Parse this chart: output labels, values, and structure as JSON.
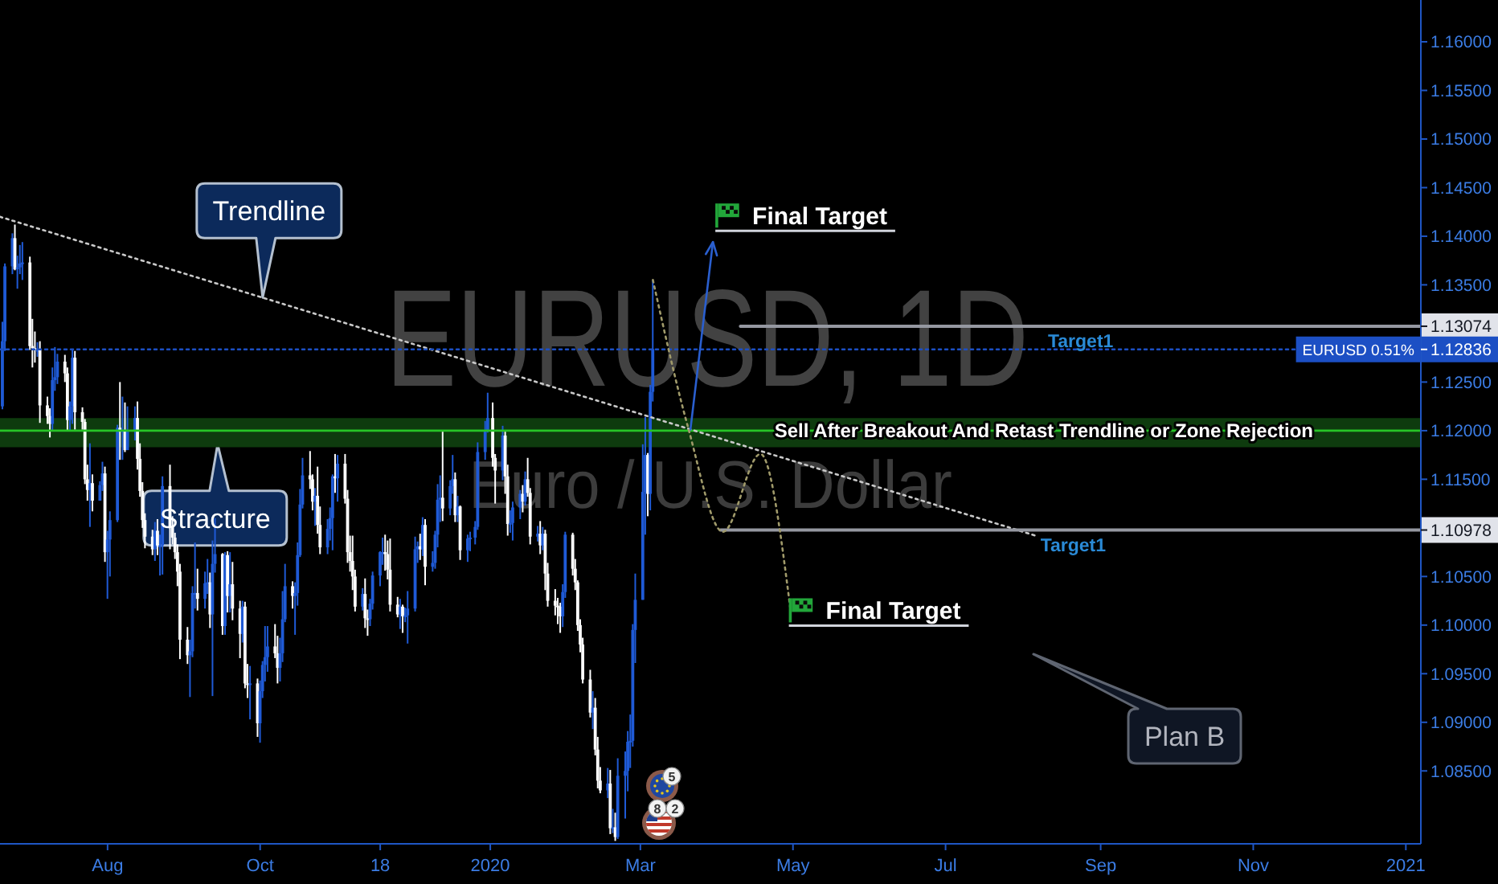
{
  "chart_data": {
    "type": "candlestick",
    "title": "EURUSD, 1D",
    "subtitle": "Euro / U.S. Dollar",
    "x": [
      "2019-06-20",
      "2019-06-21",
      "2019-06-24",
      "2019-06-25",
      "2019-06-26",
      "2019-06-27",
      "2019-06-28",
      "2019-07-01",
      "2019-07-02",
      "2019-07-03",
      "2019-07-04",
      "2019-07-05",
      "2019-07-08",
      "2019-07-09",
      "2019-07-10",
      "2019-07-11",
      "2019-07-12",
      "2019-07-15",
      "2019-07-16",
      "2019-07-17",
      "2019-07-18",
      "2019-07-19",
      "2019-07-22",
      "2019-07-23",
      "2019-07-24",
      "2019-07-25",
      "2019-07-26",
      "2019-07-29",
      "2019-07-30",
      "2019-07-31",
      "2019-08-01",
      "2019-08-02",
      "2019-08-05",
      "2019-08-06",
      "2019-08-07",
      "2019-08-08",
      "2019-08-09",
      "2019-08-12",
      "2019-08-13",
      "2019-08-14",
      "2019-08-15",
      "2019-08-16",
      "2019-08-19",
      "2019-08-20",
      "2019-08-21",
      "2019-08-22",
      "2019-08-23",
      "2019-08-26",
      "2019-08-27",
      "2019-08-28",
      "2019-08-29",
      "2019-08-30",
      "2019-09-02",
      "2019-09-03",
      "2019-09-04",
      "2019-09-05",
      "2019-09-06",
      "2019-09-09",
      "2019-09-10",
      "2019-09-11",
      "2019-09-12",
      "2019-09-13",
      "2019-09-16",
      "2019-09-17",
      "2019-09-18",
      "2019-09-19",
      "2019-09-20",
      "2019-09-23",
      "2019-09-24",
      "2019-09-25",
      "2019-09-26",
      "2019-09-27",
      "2019-09-30",
      "2019-10-01",
      "2019-10-02",
      "2019-10-03",
      "2019-10-04",
      "2019-10-07",
      "2019-10-08",
      "2019-10-09",
      "2019-10-10",
      "2019-10-11",
      "2019-10-14",
      "2019-10-15",
      "2019-10-16",
      "2019-10-17",
      "2019-10-18",
      "2019-10-21",
      "2019-10-22",
      "2019-10-23",
      "2019-10-24",
      "2019-10-25",
      "2019-10-28",
      "2019-10-29",
      "2019-10-30",
      "2019-10-31",
      "2019-11-01",
      "2019-11-04",
      "2019-11-05",
      "2019-11-06",
      "2019-11-07",
      "2019-11-08",
      "2019-11-11",
      "2019-11-12",
      "2019-11-13",
      "2019-11-14",
      "2019-11-15",
      "2019-11-18",
      "2019-11-19",
      "2019-11-20",
      "2019-11-21",
      "2019-11-22",
      "2019-11-25",
      "2019-11-26",
      "2019-11-27",
      "2019-11-28",
      "2019-11-29",
      "2019-12-02",
      "2019-12-03",
      "2019-12-04",
      "2019-12-05",
      "2019-12-06",
      "2019-12-09",
      "2019-12-10",
      "2019-12-11",
      "2019-12-12",
      "2019-12-13",
      "2019-12-16",
      "2019-12-17",
      "2019-12-18",
      "2019-12-19",
      "2019-12-20",
      "2019-12-23",
      "2019-12-24",
      "2019-12-26",
      "2019-12-27",
      "2019-12-30",
      "2019-12-31",
      "2020-01-02",
      "2020-01-03",
      "2020-01-06",
      "2020-01-07",
      "2020-01-08",
      "2020-01-09",
      "2020-01-10",
      "2020-01-13",
      "2020-01-14",
      "2020-01-15",
      "2020-01-16",
      "2020-01-17",
      "2020-01-20",
      "2020-01-21",
      "2020-01-22",
      "2020-01-23",
      "2020-01-24",
      "2020-01-27",
      "2020-01-28",
      "2020-01-29",
      "2020-01-30",
      "2020-01-31",
      "2020-02-03",
      "2020-02-04",
      "2020-02-05",
      "2020-02-06",
      "2020-02-07",
      "2020-02-10",
      "2020-02-11",
      "2020-02-12",
      "2020-02-13",
      "2020-02-14",
      "2020-02-17",
      "2020-02-18",
      "2020-02-19",
      "2020-02-20",
      "2020-02-21",
      "2020-02-24",
      "2020-02-25",
      "2020-02-26",
      "2020-02-27",
      "2020-02-28",
      "2020-03-02",
      "2020-03-03",
      "2020-03-04",
      "2020-03-05",
      "2020-03-06"
    ],
    "ohlc": [
      [
        1.1225,
        1.1312,
        1.1222,
        1.1292
      ],
      [
        1.1292,
        1.1372,
        1.1282,
        1.1369
      ],
      [
        1.1369,
        1.1403,
        1.1361,
        1.1398
      ],
      [
        1.1398,
        1.1412,
        1.1365,
        1.1366
      ],
      [
        1.1366,
        1.138,
        1.1346,
        1.1368
      ],
      [
        1.1368,
        1.1391,
        1.1361,
        1.1372
      ],
      [
        1.1372,
        1.1394,
        1.1355,
        1.1373
      ],
      [
        1.1373,
        1.1379,
        1.1283,
        1.1287
      ],
      [
        1.1287,
        1.1315,
        1.1265,
        1.1285
      ],
      [
        1.1285,
        1.1302,
        1.127,
        1.1283
      ],
      [
        1.1283,
        1.1291,
        1.1276,
        1.1283
      ],
      [
        1.1283,
        1.1292,
        1.1208,
        1.1226
      ],
      [
        1.1226,
        1.1235,
        1.1207,
        1.1215
      ],
      [
        1.1215,
        1.1223,
        1.1193,
        1.1207
      ],
      [
        1.1207,
        1.1265,
        1.12,
        1.1252
      ],
      [
        1.1252,
        1.1286,
        1.1241,
        1.1255
      ],
      [
        1.1255,
        1.1279,
        1.1248,
        1.1271
      ],
      [
        1.1271,
        1.1278,
        1.125,
        1.1259
      ],
      [
        1.1259,
        1.1265,
        1.12,
        1.1211
      ],
      [
        1.1211,
        1.123,
        1.12,
        1.1225
      ],
      [
        1.1225,
        1.1283,
        1.1207,
        1.1275
      ],
      [
        1.1275,
        1.1282,
        1.1201,
        1.1219
      ],
      [
        1.1219,
        1.1224,
        1.1201,
        1.1209
      ],
      [
        1.1209,
        1.1212,
        1.1145,
        1.115
      ],
      [
        1.115,
        1.1165,
        1.1128,
        1.1139
      ],
      [
        1.1139,
        1.1187,
        1.1101,
        1.1146
      ],
      [
        1.1146,
        1.1155,
        1.1117,
        1.1128
      ],
      [
        1.1128,
        1.1148,
        1.1128,
        1.1144
      ],
      [
        1.1144,
        1.1168,
        1.1138,
        1.1156
      ],
      [
        1.1156,
        1.1163,
        1.1065,
        1.1075
      ],
      [
        1.1075,
        1.1097,
        1.1027,
        1.1088
      ],
      [
        1.1088,
        1.1117,
        1.105,
        1.1108
      ],
      [
        1.1108,
        1.1206,
        1.1106,
        1.1203
      ],
      [
        1.1203,
        1.125,
        1.117,
        1.1199
      ],
      [
        1.1199,
        1.1235,
        1.117,
        1.12
      ],
      [
        1.12,
        1.1229,
        1.1178,
        1.118
      ],
      [
        1.118,
        1.1225,
        1.118,
        1.12
      ],
      [
        1.12,
        1.1225,
        1.119,
        1.1213
      ],
      [
        1.1213,
        1.123,
        1.116,
        1.1171
      ],
      [
        1.1171,
        1.1187,
        1.1132,
        1.1138
      ],
      [
        1.1138,
        1.1147,
        1.11,
        1.1108
      ],
      [
        1.1108,
        1.1115,
        1.1079,
        1.1091
      ],
      [
        1.1091,
        1.1098,
        1.1072,
        1.1078
      ],
      [
        1.1078,
        1.1106,
        1.1066,
        1.1097
      ],
      [
        1.1097,
        1.1109,
        1.1072,
        1.1082
      ],
      [
        1.1082,
        1.1093,
        1.1051,
        1.1082
      ],
      [
        1.1082,
        1.1153,
        1.1052,
        1.1143
      ],
      [
        1.1143,
        1.1165,
        1.1078,
        1.1101
      ],
      [
        1.1101,
        1.1112,
        1.1083,
        1.109
      ],
      [
        1.109,
        1.1095,
        1.1068,
        1.1075
      ],
      [
        1.1075,
        1.1083,
        1.104,
        1.1055
      ],
      [
        1.1055,
        1.1063,
        1.0965,
        1.0985
      ],
      [
        1.0985,
        1.0998,
        1.096,
        1.0969
      ],
      [
        1.0969,
        1.0985,
        1.0926,
        1.0973
      ],
      [
        1.0973,
        1.104,
        1.0967,
        1.1033
      ],
      [
        1.1033,
        1.1085,
        1.1017,
        1.1033
      ],
      [
        1.1033,
        1.1058,
        1.1015,
        1.1027
      ],
      [
        1.1027,
        1.1055,
        1.1017,
        1.1043
      ],
      [
        1.1043,
        1.1068,
        1.1032,
        1.1044
      ],
      [
        1.1044,
        1.1054,
        1.0997,
        1.1011
      ],
      [
        1.1011,
        1.1087,
        1.0927,
        1.1063
      ],
      [
        1.1063,
        1.111,
        1.1054,
        1.1073
      ],
      [
        1.1073,
        1.1074,
        1.099,
        1.0999
      ],
      [
        1.0999,
        1.1075,
        1.099,
        1.1072
      ],
      [
        1.1072,
        1.1076,
        1.1013,
        1.103
      ],
      [
        1.103,
        1.1075,
        1.1013,
        1.1042
      ],
      [
        1.1042,
        1.1065,
        1.1005,
        1.1017
      ],
      [
        1.1017,
        1.1025,
        1.0966,
        1.0991
      ],
      [
        1.0991,
        1.1025,
        1.0982,
        1.1019
      ],
      [
        1.1019,
        1.1024,
        1.0935,
        1.094
      ],
      [
        1.094,
        1.096,
        1.0925,
        1.0939
      ],
      [
        1.0939,
        1.0958,
        1.0903,
        1.094
      ],
      [
        1.094,
        1.0945,
        1.0885,
        1.0899
      ],
      [
        1.0899,
        1.0943,
        1.0879,
        1.0932
      ],
      [
        1.0932,
        1.0963,
        1.0925,
        1.0959
      ],
      [
        1.0959,
        1.0999,
        1.0942,
        1.0967
      ],
      [
        1.0967,
        1.0999,
        1.0952,
        1.0978
      ],
      [
        1.0978,
        1.1001,
        1.0966,
        1.0971
      ],
      [
        1.0971,
        1.0989,
        1.094,
        1.0956
      ],
      [
        1.0956,
        1.0987,
        1.0942,
        1.0971
      ],
      [
        1.0971,
        1.1035,
        1.0962,
        1.1006
      ],
      [
        1.1006,
        1.1063,
        1.1003,
        1.104
      ],
      [
        1.104,
        1.1045,
        1.1017,
        1.103
      ],
      [
        1.103,
        1.1044,
        1.099,
        1.1033
      ],
      [
        1.1033,
        1.1085,
        1.102,
        1.1072
      ],
      [
        1.1072,
        1.114,
        1.107,
        1.1124
      ],
      [
        1.1124,
        1.1172,
        1.112,
        1.1154
      ],
      [
        1.1154,
        1.1179,
        1.114,
        1.115
      ],
      [
        1.115,
        1.1155,
        1.1118,
        1.1127
      ],
      [
        1.1127,
        1.1141,
        1.1102,
        1.1133
      ],
      [
        1.1133,
        1.1163,
        1.1094,
        1.1103
      ],
      [
        1.1103,
        1.1122,
        1.1073,
        1.108
      ],
      [
        1.108,
        1.1109,
        1.1073,
        1.1099
      ],
      [
        1.1099,
        1.1121,
        1.1087,
        1.111
      ],
      [
        1.111,
        1.1155,
        1.1077,
        1.1153
      ],
      [
        1.1153,
        1.1176,
        1.1136,
        1.1151
      ],
      [
        1.1151,
        1.1175,
        1.1127,
        1.1166
      ],
      [
        1.1166,
        1.1176,
        1.1125,
        1.113
      ],
      [
        1.113,
        1.1139,
        1.1064,
        1.1075
      ],
      [
        1.1075,
        1.1092,
        1.1055,
        1.1066
      ],
      [
        1.1066,
        1.1092,
        1.1036,
        1.105
      ],
      [
        1.105,
        1.1057,
        1.1014,
        1.1019
      ],
      [
        1.1019,
        1.1038,
        1.1015,
        1.1032
      ],
      [
        1.1032,
        1.1048,
        1.0997,
        1.1007
      ],
      [
        1.1007,
        1.1016,
        1.0989,
        1.1006
      ],
      [
        1.1006,
        1.1027,
        1.0999,
        1.1022
      ],
      [
        1.1022,
        1.1055,
        1.1016,
        1.1051
      ],
      [
        1.1051,
        1.1076,
        1.104,
        1.1075
      ],
      [
        1.1075,
        1.109,
        1.1062,
        1.1075
      ],
      [
        1.1075,
        1.1093,
        1.1056,
        1.1073
      ],
      [
        1.1073,
        1.1087,
        1.1047,
        1.1057
      ],
      [
        1.1057,
        1.1089,
        1.1014,
        1.1021
      ],
      [
        1.1021,
        1.1029,
        1.1008,
        1.1011
      ],
      [
        1.1011,
        1.1027,
        1.0996,
        1.1019
      ],
      [
        1.1019,
        1.1021,
        1.0992,
        1.1009
      ],
      [
        1.1009,
        1.1018,
        1.1003,
        1.101
      ],
      [
        1.101,
        1.1035,
        1.0981,
        1.1017
      ],
      [
        1.1017,
        1.1091,
        1.1014,
        1.1078
      ],
      [
        1.1078,
        1.1086,
        1.1064,
        1.1081
      ],
      [
        1.1081,
        1.1094,
        1.1067,
        1.1078
      ],
      [
        1.1078,
        1.1111,
        1.1071,
        1.1103
      ],
      [
        1.1103,
        1.1109,
        1.1041,
        1.106
      ],
      [
        1.106,
        1.1076,
        1.1055,
        1.1064
      ],
      [
        1.1064,
        1.1097,
        1.1058,
        1.1093
      ],
      [
        1.1093,
        1.1145,
        1.108,
        1.1129
      ],
      [
        1.1129,
        1.1154,
        1.1106,
        1.1131
      ],
      [
        1.1131,
        1.1199,
        1.1107,
        1.112
      ],
      [
        1.112,
        1.1149,
        1.1113,
        1.1143
      ],
      [
        1.1143,
        1.1175,
        1.1135,
        1.115
      ],
      [
        1.115,
        1.1157,
        1.1106,
        1.1113
      ],
      [
        1.1113,
        1.1133,
        1.1106,
        1.1122
      ],
      [
        1.1122,
        1.1123,
        1.1067,
        1.1077
      ],
      [
        1.1077,
        1.1093,
        1.1065,
        1.1089
      ],
      [
        1.1089,
        1.1096,
        1.1076,
        1.109
      ],
      [
        1.109,
        1.1107,
        1.1083,
        1.1101
      ],
      [
        1.1101,
        1.1188,
        1.1098,
        1.1178
      ],
      [
        1.1178,
        1.121,
        1.117,
        1.12
      ],
      [
        1.12,
        1.1239,
        1.1198,
        1.1213
      ],
      [
        1.1213,
        1.1229,
        1.1163,
        1.1172
      ],
      [
        1.1172,
        1.1176,
        1.1125,
        1.1159
      ],
      [
        1.1159,
        1.1205,
        1.1149,
        1.1195
      ],
      [
        1.1195,
        1.1199,
        1.1135,
        1.1153
      ],
      [
        1.1153,
        1.1165,
        1.1092,
        1.1104
      ],
      [
        1.1104,
        1.1118,
        1.1095,
        1.1105
      ],
      [
        1.1105,
        1.1127,
        1.1087,
        1.1121
      ],
      [
        1.1121,
        1.1139,
        1.1109,
        1.1135
      ],
      [
        1.1135,
        1.1144,
        1.1116,
        1.1127
      ],
      [
        1.1127,
        1.1158,
        1.1123,
        1.115
      ],
      [
        1.115,
        1.1172,
        1.1132,
        1.1136
      ],
      [
        1.1136,
        1.1141,
        1.1083,
        1.1091
      ],
      [
        1.1091,
        1.1102,
        1.1086,
        1.1094
      ],
      [
        1.1094,
        1.1107,
        1.1073,
        1.1082
      ],
      [
        1.1082,
        1.1101,
        1.1077,
        1.1094
      ],
      [
        1.1094,
        1.1098,
        1.1036,
        1.1053
      ],
      [
        1.1053,
        1.1064,
        1.1019,
        1.1025
      ],
      [
        1.1025,
        1.1037,
        1.101,
        1.102
      ],
      [
        1.102,
        1.1028,
        1.1001,
        1.1019
      ],
      [
        1.1019,
        1.1023,
        1.0992,
        1.1009
      ],
      [
        1.1009,
        1.1042,
        1.0998,
        1.1034
      ],
      [
        1.1034,
        1.1096,
        1.1028,
        1.1093
      ],
      [
        1.1093,
        1.1095,
        1.1051,
        1.1058
      ],
      [
        1.1058,
        1.1068,
        1.1036,
        1.1044
      ],
      [
        1.1044,
        1.1046,
        1.0994,
        1.1
      ],
      [
        1.1,
        1.1006,
        1.0972,
        1.098
      ],
      [
        1.098,
        1.0987,
        1.094,
        1.0944
      ],
      [
        1.0944,
        1.0954,
        1.0905,
        1.091
      ],
      [
        1.091,
        1.0932,
        1.0893,
        1.0915
      ],
      [
        1.0915,
        1.0925,
        1.0866,
        1.0872
      ],
      [
        1.0872,
        1.0885,
        1.0832,
        1.084
      ],
      [
        1.084,
        1.0854,
        1.0827,
        1.083
      ],
      [
        1.083,
        1.0853,
        1.0822,
        1.0837
      ],
      [
        1.0837,
        1.0851,
        1.0785,
        1.0791
      ],
      [
        1.0791,
        1.0811,
        1.0786,
        1.0792
      ],
      [
        1.0792,
        1.0807,
        1.0778,
        1.0782
      ],
      [
        1.0782,
        1.0863,
        1.078,
        1.0845
      ],
      [
        1.0845,
        1.087,
        1.0801,
        1.085
      ],
      [
        1.085,
        1.0891,
        1.0829,
        1.088
      ],
      [
        1.088,
        1.0908,
        1.0853,
        1.0881
      ],
      [
        1.0881,
        1.1001,
        1.0875,
        1.0995
      ],
      [
        1.0995,
        1.1053,
        1.0961,
        1.1026
      ],
      [
        1.1026,
        1.1186,
        1.1026,
        1.1137
      ],
      [
        1.1137,
        1.1214,
        1.1093,
        1.1175
      ],
      [
        1.1175,
        1.1177,
        1.1112,
        1.1135
      ],
      [
        1.1135,
        1.1247,
        1.1118,
        1.124
      ],
      [
        1.124,
        1.1355,
        1.123,
        1.1284
      ]
    ],
    "colors": [
      "#1f5ad6",
      "#1f5ad6",
      "#1f5ad6",
      "#ffffff",
      "#1f5ad6",
      "#1f5ad6",
      "#1f5ad6",
      "#ffffff",
      "#ffffff",
      "#ffffff",
      "#1f5ad6",
      "#ffffff",
      "#ffffff",
      "#ffffff",
      "#1f5ad6",
      "#1f5ad6",
      "#1f5ad6",
      "#ffffff",
      "#ffffff",
      "#1f5ad6",
      "#1f5ad6",
      "#ffffff",
      "#ffffff",
      "#ffffff",
      "#ffffff",
      "#1f5ad6",
      "#ffffff",
      "#1f5ad6",
      "#1f5ad6",
      "#ffffff",
      "#1f5ad6",
      "#1f5ad6",
      "#1f5ad6",
      "#ffffff",
      "#1f5ad6",
      "#ffffff",
      "#1f5ad6",
      "#1f5ad6",
      "#ffffff",
      "#ffffff",
      "#ffffff",
      "#ffffff",
      "#ffffff",
      "#1f5ad6",
      "#ffffff",
      "#1f5ad6",
      "#1f5ad6",
      "#ffffff",
      "#ffffff",
      "#ffffff",
      "#ffffff",
      "#ffffff",
      "#ffffff",
      "#1f5ad6",
      "#1f5ad6",
      "#1f5ad6",
      "#ffffff",
      "#1f5ad6",
      "#1f5ad6",
      "#ffffff",
      "#1f5ad6",
      "#1f5ad6",
      "#ffffff",
      "#1f5ad6",
      "#ffffff",
      "#1f5ad6",
      "#ffffff",
      "#ffffff",
      "#1f5ad6",
      "#ffffff",
      "#ffffff",
      "#1f5ad6",
      "#ffffff",
      "#1f5ad6",
      "#1f5ad6",
      "#1f5ad6",
      "#1f5ad6",
      "#ffffff",
      "#ffffff",
      "#1f5ad6",
      "#1f5ad6",
      "#1f5ad6",
      "#ffffff",
      "#1f5ad6",
      "#1f5ad6",
      "#1f5ad6",
      "#1f5ad6",
      "#ffffff",
      "#ffffff",
      "#1f5ad6",
      "#ffffff",
      "#ffffff",
      "#1f5ad6",
      "#1f5ad6",
      "#1f5ad6",
      "#ffffff",
      "#1f5ad6",
      "#ffffff",
      "#ffffff",
      "#ffffff",
      "#ffffff",
      "#ffffff",
      "#1f5ad6",
      "#ffffff",
      "#ffffff",
      "#1f5ad6",
      "#1f5ad6",
      "#1f5ad6",
      "#1f5ad6",
      "#ffffff",
      "#ffffff",
      "#ffffff",
      "#ffffff",
      "#1f5ad6",
      "#ffffff",
      "#1f5ad6",
      "#1f5ad6",
      "#1f5ad6",
      "#1f5ad6",
      "#ffffff",
      "#1f5ad6",
      "#ffffff",
      "#1f5ad6",
      "#1f5ad6",
      "#1f5ad6",
      "#1f5ad6",
      "#ffffff",
      "#1f5ad6",
      "#1f5ad6",
      "#ffffff",
      "#1f5ad6",
      "#ffffff",
      "#1f5ad6",
      "#1f5ad6",
      "#1f5ad6",
      "#1f5ad6",
      "#1f5ad6",
      "#1f5ad6",
      "#ffffff",
      "#ffffff",
      "#1f5ad6",
      "#ffffff",
      "#ffffff",
      "#1f5ad6",
      "#1f5ad6",
      "#1f5ad6",
      "#ffffff",
      "#1f5ad6",
      "#ffffff",
      "#ffffff",
      "#1f5ad6",
      "#ffffff",
      "#1f5ad6",
      "#ffffff",
      "#ffffff",
      "#ffffff",
      "#ffffff",
      "#ffffff",
      "#1f5ad6",
      "#1f5ad6",
      "#ffffff",
      "#ffffff",
      "#ffffff",
      "#ffffff",
      "#ffffff",
      "#ffffff",
      "#1f5ad6",
      "#ffffff",
      "#ffffff",
      "#ffffff",
      "#1f5ad6",
      "#ffffff",
      "#1f5ad6",
      "#ffffff",
      "#1f5ad6",
      "#1f5ad6",
      "#1f5ad6",
      "#1f5ad6",
      "#1f5ad6",
      "#1f5ad6",
      "#1f5ad6",
      "#1f5ad6",
      "#ffffff",
      "#1f5ad6",
      "#1f5ad6"
    ],
    "xlim": [
      "2019-06-19",
      "2021-01-07"
    ],
    "xticks": [
      {
        "value": "2019-08-01",
        "label": "Aug"
      },
      {
        "value": "2019-10-01",
        "label": "Oct"
      },
      {
        "value": "2019-11-18",
        "label": "18"
      },
      {
        "value": "2020-01-01",
        "label": "2020"
      },
      {
        "value": "2020-03-01",
        "label": "Mar"
      },
      {
        "value": "2020-05-01",
        "label": "May"
      },
      {
        "value": "2020-07-01",
        "label": "Jul"
      },
      {
        "value": "2020-09-01",
        "label": "Sep"
      },
      {
        "value": "2020-11-01",
        "label": "Nov"
      },
      {
        "value": "2021-01-01",
        "label": "2021"
      }
    ],
    "ylim": [
      1.0775,
      1.1643
    ],
    "yticks": [
      {
        "value": 1.085,
        "label": "1.08500"
      },
      {
        "value": 1.09,
        "label": "1.09000"
      },
      {
        "value": 1.095,
        "label": "1.09500"
      },
      {
        "value": 1.1,
        "label": "1.10000"
      },
      {
        "value": 1.105,
        "label": "1.10500"
      },
      {
        "value": 1.115,
        "label": "1.11500"
      },
      {
        "value": 1.12,
        "label": "1.12000"
      },
      {
        "value": 1.125,
        "label": "1.12500"
      },
      {
        "value": 1.135,
        "label": "1.13500"
      },
      {
        "value": 1.14,
        "label": "1.14000"
      },
      {
        "value": 1.145,
        "label": "1.14500"
      },
      {
        "value": 1.15,
        "label": "1.15000"
      },
      {
        "value": 1.155,
        "label": "1.15500"
      },
      {
        "value": 1.16,
        "label": "1.16000"
      }
    ],
    "series": [
      {
        "type": "line",
        "x": [
          "2019-06-19",
          "2020-08-06"
        ],
        "values": [
          1.142,
          1.1092
        ],
        "color": "#c9c9c9",
        "line_style": "dotted"
      },
      {
        "type": "line",
        "x": [
          "2020-04-10",
          "2021-01-07"
        ],
        "values": [
          1.13074,
          1.13074
        ],
        "color": "#9598a1",
        "value_labels": [
          null,
          "1.13074"
        ]
      },
      {
        "type": "line",
        "x": [
          "2020-04-02",
          "2021-01-07"
        ],
        "values": [
          1.10978,
          1.10978
        ],
        "color": "#9598a1",
        "value_labels": [
          null,
          "1.10978"
        ]
      },
      {
        "type": "line",
        "name": "EURUSD 0.51%",
        "x": [
          "2019-06-19",
          "2021-01-07"
        ],
        "values": [
          1.12836,
          1.12836
        ],
        "color": "#1c4fc4",
        "line_style": "dotted",
        "value_labels": [
          null,
          "1.12836"
        ]
      },
      {
        "type": "line",
        "x": [
          "2020-03-21",
          "2020-03-30"
        ],
        "values": [
          1.1201,
          1.1394
        ],
        "color": "#2a5fcf"
      },
      {
        "type": "line",
        "x": [
          "2020-03-06",
          "2020-03-20",
          "2020-04-03",
          "2020-04-18",
          "2020-04-30"
        ],
        "values": [
          1.1355,
          1.1204,
          1.1096,
          1.1176,
          1.1016
        ],
        "color": "#a09a6a",
        "line_style": "dotted"
      }
    ],
    "ref_lines": [
      {
        "axis": "y",
        "value": 1.12,
        "label": "Sell After Breakout And Retast Trendline or Zone Rejection",
        "color": "#27c427"
      }
    ],
    "bands": [
      {
        "axis": "y",
        "from": 1.1183,
        "to": 1.1213,
        "color": "#0e3b0e"
      }
    ],
    "annotations": [
      {
        "text": "Trendline",
        "x": "2019-10-02",
        "y": 1.1337
      },
      {
        "text": "Stracture",
        "x": "2019-09-14",
        "y": 1.1186
      },
      {
        "text": "Target1",
        "x": "2020-08-24",
        "y": 1.13074
      },
      {
        "text": "Target1",
        "x": "2020-08-21",
        "y": 1.10978
      },
      {
        "text": "Final Target",
        "x": "2020-03-30",
        "y": 1.1394
      },
      {
        "text": "Final Target",
        "x": "2020-04-30",
        "y": 1.1016
      },
      "Plan B",
      "5",
      "8",
      "2"
    ]
  }
}
